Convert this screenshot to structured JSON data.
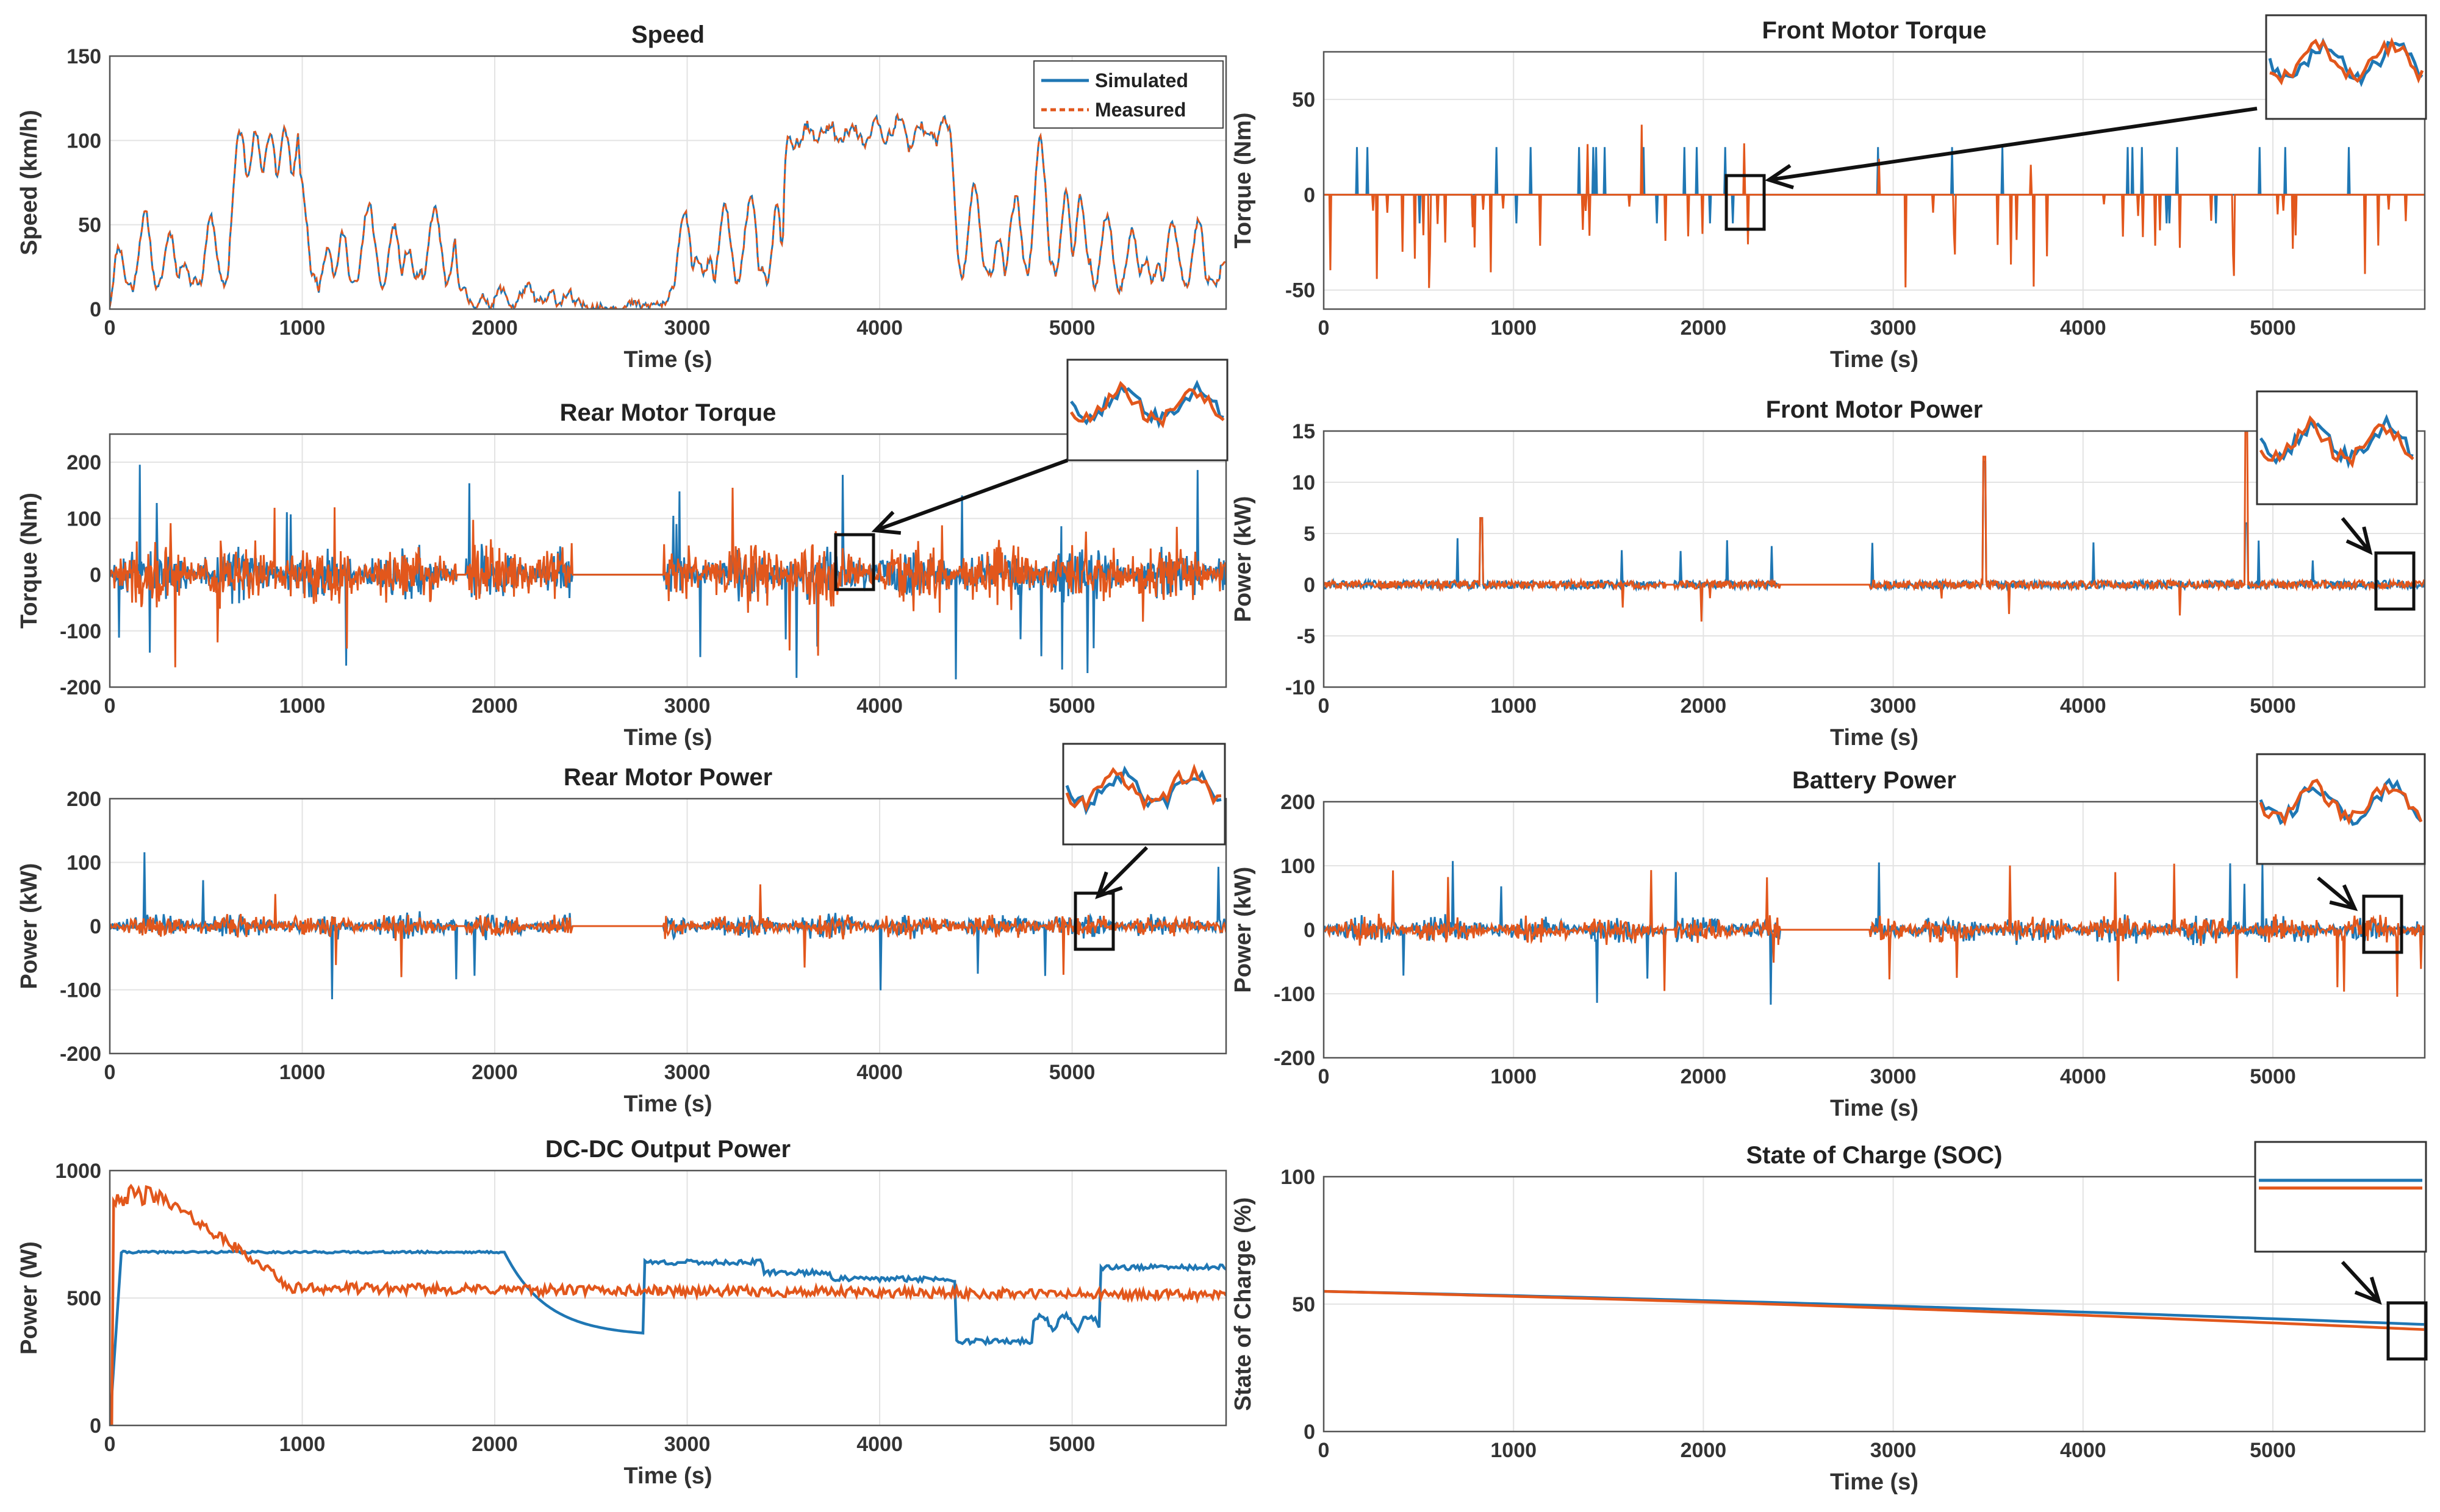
{
  "figure": {
    "colors": {
      "simulated": "#1f77b4",
      "measured": "#e2571c"
    }
  },
  "legend": {
    "simulated": "Simulated",
    "measured": "Measured"
  },
  "chart_data": [
    {
      "id": "speed",
      "type": "line",
      "title": "Speed",
      "xlabel": "Time (s)",
      "ylabel": "Speed (km/h)",
      "xlim": [
        0,
        5800
      ],
      "ylim": [
        0,
        150
      ],
      "xticks": [
        0,
        1000,
        2000,
        3000,
        4000,
        5000
      ],
      "yticks": [
        0,
        50,
        100,
        150
      ],
      "pattern": "speed",
      "series": [
        {
          "name": "Simulated",
          "key": "simulated"
        },
        {
          "name": "Measured",
          "key": "measured"
        }
      ]
    },
    {
      "id": "front_torque",
      "type": "line",
      "title": "Front Motor Torque",
      "xlabel": "Time (s)",
      "ylabel": "Torque (Nm)",
      "xlim": [
        0,
        5800
      ],
      "ylim": [
        -60,
        75
      ],
      "xticks": [
        0,
        1000,
        2000,
        3000,
        4000,
        5000
      ],
      "yticks": [
        -50,
        0,
        50
      ],
      "pattern": "front_torque",
      "inset": true,
      "zoom_x": 2180,
      "series": [
        {
          "name": "Simulated",
          "key": "simulated"
        },
        {
          "name": "Measured",
          "key": "measured"
        }
      ]
    },
    {
      "id": "rear_torque",
      "type": "line",
      "title": "Rear Motor Torque",
      "xlabel": "Time (s)",
      "ylabel": "Torque (Nm)",
      "xlim": [
        0,
        5800
      ],
      "ylim": [
        -200,
        250
      ],
      "xticks": [
        0,
        1000,
        2000,
        3000,
        4000,
        5000
      ],
      "yticks": [
        -200,
        -100,
        0,
        100,
        200
      ],
      "pattern": "rear_torque",
      "inset": true,
      "zoom_x": 3850,
      "series": [
        {
          "name": "Simulated",
          "key": "simulated"
        },
        {
          "name": "Measured",
          "key": "measured"
        }
      ]
    },
    {
      "id": "front_power",
      "type": "line",
      "title": "Front Motor Power",
      "xlabel": "Time (s)",
      "ylabel": "Power (kW)",
      "xlim": [
        0,
        5800
      ],
      "ylim": [
        -10,
        15
      ],
      "xticks": [
        0,
        1000,
        2000,
        3000,
        4000,
        5000
      ],
      "yticks": [
        -10,
        -5,
        0,
        5,
        10,
        15
      ],
      "pattern": "front_power",
      "inset": true,
      "zoom_x": 5600,
      "series": [
        {
          "name": "Simulated",
          "key": "simulated"
        },
        {
          "name": "Measured",
          "key": "measured"
        }
      ]
    },
    {
      "id": "rear_power",
      "type": "line",
      "title": "Rear Motor Power",
      "xlabel": "Time (s)",
      "ylabel": "Power (kW)",
      "xlim": [
        0,
        5800
      ],
      "ylim": [
        -200,
        200
      ],
      "xticks": [
        0,
        1000,
        2000,
        3000,
        4000,
        5000
      ],
      "yticks": [
        -200,
        -100,
        0,
        100,
        200
      ],
      "pattern": "rear_power",
      "inset": true,
      "zoom_x": 5100,
      "series": [
        {
          "name": "Simulated",
          "key": "simulated"
        },
        {
          "name": "Measured",
          "key": "measured"
        }
      ]
    },
    {
      "id": "battery_power",
      "type": "line",
      "title": "Battery Power",
      "xlabel": "Time (s)",
      "ylabel": "Power (kW)",
      "xlim": [
        0,
        5800
      ],
      "ylim": [
        -200,
        200
      ],
      "xticks": [
        0,
        1000,
        2000,
        3000,
        4000,
        5000
      ],
      "yticks": [
        -200,
        -100,
        0,
        100,
        200
      ],
      "pattern": "battery_power",
      "inset": true,
      "zoom_x": 5500,
      "series": [
        {
          "name": "Simulated",
          "key": "simulated"
        },
        {
          "name": "Measured",
          "key": "measured"
        }
      ]
    },
    {
      "id": "dcdc_power",
      "type": "line",
      "title": "DC-DC Output Power",
      "xlabel": "Time (s)",
      "ylabel": "Power (W)",
      "xlim": [
        0,
        5800
      ],
      "ylim": [
        0,
        1000
      ],
      "xticks": [
        0,
        1000,
        2000,
        3000,
        4000,
        5000
      ],
      "yticks": [
        0,
        500,
        1000
      ],
      "pattern": "dcdc",
      "series": [
        {
          "name": "Simulated",
          "key": "simulated"
        },
        {
          "name": "Measured",
          "key": "measured"
        }
      ]
    },
    {
      "id": "soc",
      "type": "line",
      "title": "State of Charge (SOC)",
      "xlabel": "Time (s)",
      "ylabel": "State of Charge (%)",
      "xlim": [
        0,
        5800
      ],
      "ylim": [
        0,
        100
      ],
      "xticks": [
        0,
        1000,
        2000,
        3000,
        4000,
        5000
      ],
      "yticks": [
        0,
        50,
        100
      ],
      "pattern": "soc",
      "inset": true,
      "zoom_x": 5650,
      "series": [
        {
          "name": "Simulated",
          "key": "simulated",
          "start": 55,
          "end": 42
        },
        {
          "name": "Measured",
          "key": "measured",
          "start": 55,
          "end": 40
        }
      ]
    }
  ]
}
